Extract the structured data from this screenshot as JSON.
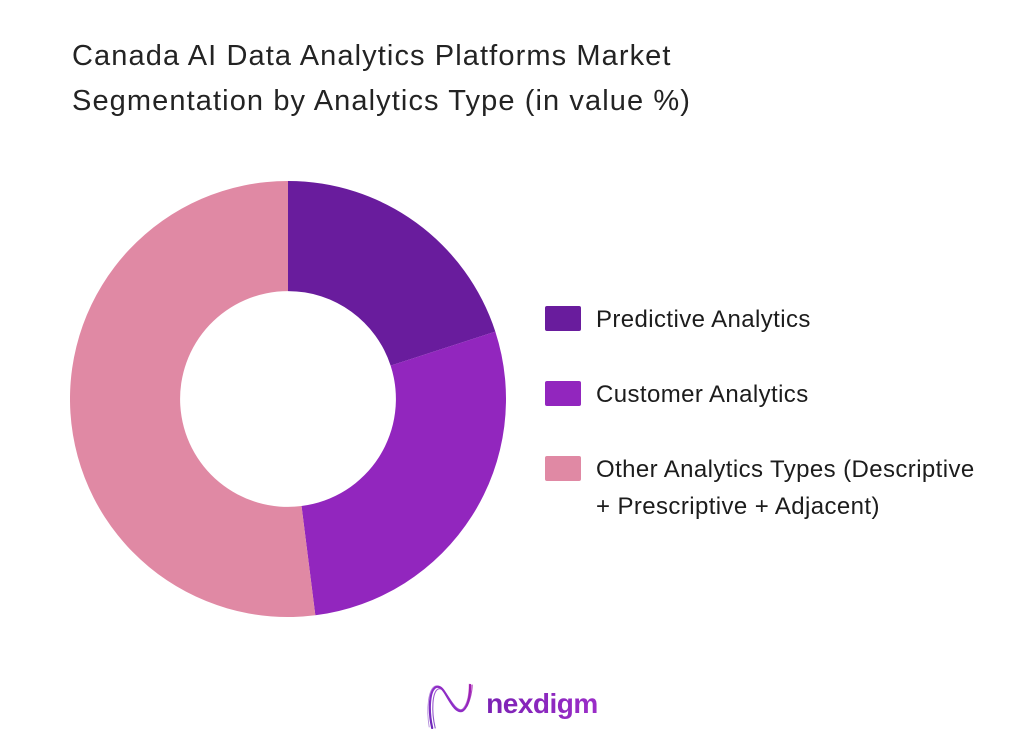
{
  "header": {
    "title_line1": "Canada AI Data Analytics Platforms Market",
    "title_line2": "Segmentation by Analytics Type (in value %)"
  },
  "chart_data": {
    "type": "pie",
    "subtype": "donut",
    "title": "Canada AI Data Analytics Platforms Market Segmentation by Analytics Type (in value %)",
    "categories": [
      "Predictive Analytics",
      "Customer Analytics",
      "Other Analytics Types (Descriptive + Prescriptive + Adjacent)"
    ],
    "values": [
      20,
      28,
      52
    ],
    "unit": "value %",
    "colors": [
      "#691C9D",
      "#9226BE",
      "#E089A4"
    ],
    "start_angle_deg": 0,
    "direction": "clockwise",
    "donut_hole_ratio": 0.5,
    "legend_position": "right",
    "data_labels": false
  },
  "legend": {
    "items": [
      {
        "label": "Predictive Analytics",
        "color": "#691C9D"
      },
      {
        "label": "Customer Analytics",
        "color": "#9226BE"
      },
      {
        "label": "Other Analytics Types (Descriptive + Prescriptive + Adjacent)",
        "color": "#E089A4"
      }
    ]
  },
  "footer": {
    "logo_text": "nexdigm",
    "logo_icon": "nexdigm-wave-n-icon",
    "logo_gradient": {
      "start": "#7B22B4",
      "end": "#9B2DC8"
    }
  }
}
